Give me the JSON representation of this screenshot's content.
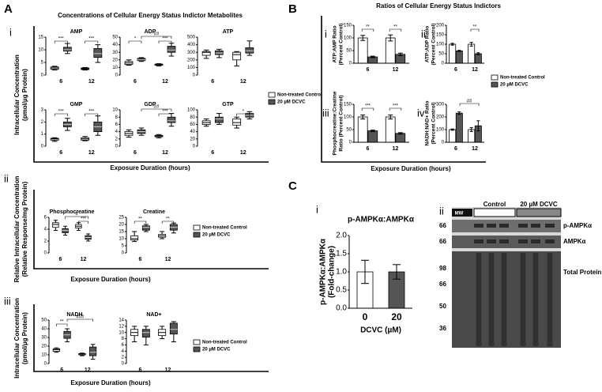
{
  "figure": {
    "A": {
      "label": "A",
      "title": "Concentrations of Cellular Energy Status Indictor Metabolites",
      "groups": [
        {
          "label": "i",
          "ylabel": [
            "Intracellular Concentration",
            "(pmol/µg Protein)"
          ],
          "xlabel": "Exposure Duration (hours)"
        },
        {
          "label": "ii",
          "ylabel": [
            "Relative Intracellular Concentration",
            "(Relative Response/mg Protein)"
          ],
          "xlabel": "Exposure Duration (hours)"
        },
        {
          "label": "iii",
          "ylabel": [
            "Intracellular Concentration",
            "(pmol/µg Protein)"
          ],
          "xlabel": "Exposure Duration (hours)"
        }
      ]
    },
    "B": {
      "label": "B",
      "title": "Ratios of Cellular Energy Status Indictors",
      "sublabels": [
        "i",
        "ii",
        "iii",
        "iv"
      ],
      "xlabel": "Exposure Duration (hours)"
    },
    "C": {
      "label": "C",
      "sublabels": [
        "i",
        "ii"
      ],
      "blot": {
        "header": [
          "MW",
          "Control",
          "20 µM DCVC"
        ],
        "bands": [
          "p-AMPKα",
          "AMPKα",
          "Total Protein"
        ],
        "mw": [
          "66",
          "66",
          "98",
          "66",
          "50",
          "36"
        ]
      }
    }
  },
  "chart_data": [
    {
      "type": "box",
      "title": "AMP",
      "categories": [
        "6",
        "12"
      ],
      "ylim": [
        0,
        15
      ],
      "yticks": [
        0,
        5,
        10,
        15
      ],
      "annotations": [
        "***",
        "***"
      ],
      "series": [
        {
          "color": "#ffffff",
          "values": [
            [
              2,
              2.3,
              2.8,
              3.2,
              3.5
            ],
            [
              2,
              2.2,
              2.5,
              2.8,
              3
            ]
          ]
        },
        {
          "color": "#555555",
          "values": [
            [
              8.5,
              9.5,
              10,
              11,
              12.5
            ],
            [
              5,
              7,
              8.5,
              10.5,
              12
            ]
          ]
        }
      ]
    },
    {
      "type": "box",
      "title": "ADP",
      "categories": [
        "6",
        "12"
      ],
      "ylim": [
        0,
        50
      ],
      "yticks": [
        0,
        10,
        20,
        30,
        40,
        50
      ],
      "annotations": [
        "*",
        "***",
        "##"
      ],
      "series": [
        {
          "color": "#ffffff",
          "values": [
            [
              13,
              14,
              16,
              18,
              20
            ],
            [
              12,
              13,
              14,
              14.5,
              15
            ]
          ]
        },
        {
          "color": "#555555",
          "values": [
            [
              18,
              19,
              20,
              22,
              23
            ],
            [
              25,
              30,
              33,
              38,
              42
            ]
          ]
        }
      ]
    },
    {
      "type": "box",
      "title": "ATP",
      "categories": [
        "6",
        "12"
      ],
      "ylim": [
        0,
        500
      ],
      "yticks": [
        0,
        100,
        200,
        300,
        400,
        500
      ],
      "legend": "right",
      "series": [
        {
          "name": "Non-treated Control",
          "color": "#ffffff",
          "values": [
            [
              220,
              260,
              300,
              310,
              330
            ],
            [
              120,
              200,
              270,
              300,
              310
            ]
          ]
        },
        {
          "name": "20 µM DCVC",
          "color": "#555555",
          "values": [
            [
              230,
              270,
              290,
              320,
              340
            ],
            [
              260,
              290,
              320,
              360,
              450
            ]
          ]
        }
      ]
    },
    {
      "type": "box",
      "title": "GMP",
      "categories": [
        "6",
        "12"
      ],
      "ylim": [
        0,
        3
      ],
      "yticks": [
        0,
        1,
        2,
        3
      ],
      "annotations": [
        "***",
        "***"
      ],
      "series": [
        {
          "color": "#ffffff",
          "values": [
            [
              0.4,
              0.5,
              0.6,
              0.65,
              0.7
            ],
            [
              0.45,
              0.5,
              0.6,
              0.7,
              0.8
            ]
          ]
        },
        {
          "color": "#555555",
          "values": [
            [
              1.3,
              1.6,
              1.8,
              2,
              2.3
            ],
            [
              0.9,
              1.2,
              1.6,
              2,
              2.5
            ]
          ]
        }
      ]
    },
    {
      "type": "box",
      "title": "GDP",
      "categories": [
        "6",
        "12"
      ],
      "ylim": [
        0,
        10
      ],
      "yticks": [
        0,
        2,
        4,
        6,
        8,
        10
      ],
      "annotations": [
        "***",
        "##"
      ],
      "series": [
        {
          "color": "#ffffff",
          "values": [
            [
              2.5,
              3,
              3.5,
              4,
              4.5
            ],
            [
              2.3,
              2.6,
              2.8,
              3,
              3.2
            ]
          ]
        },
        {
          "color": "#555555",
          "values": [
            [
              3,
              3.5,
              4,
              4.5,
              5
            ],
            [
              5.5,
              6.5,
              7,
              8,
              9
            ]
          ]
        }
      ]
    },
    {
      "type": "box",
      "title": "GTP",
      "categories": [
        "6",
        "12"
      ],
      "ylim": [
        0,
        100
      ],
      "yticks": [
        0,
        20,
        40,
        60,
        80,
        100
      ],
      "annotations": [
        "*"
      ],
      "series": [
        {
          "color": "#ffffff",
          "values": [
            [
              55,
              60,
              65,
              70,
              75
            ],
            [
              50,
              58,
              65,
              75,
              80
            ]
          ]
        },
        {
          "color": "#555555",
          "values": [
            [
              60,
              65,
              75,
              80,
              90
            ],
            [
              75,
              80,
              85,
              90,
              95
            ]
          ]
        }
      ]
    },
    {
      "type": "box",
      "title": "Phosphocreatine",
      "categories": [
        "6",
        "12"
      ],
      "ylim": [
        0,
        6
      ],
      "yticks": [
        0,
        2,
        4,
        6
      ],
      "annotations": [
        "#",
        "***"
      ],
      "series": [
        {
          "color": "#ffffff",
          "values": [
            [
              3.8,
              4.3,
              4.8,
              5.1,
              5.5
            ],
            [
              3.8,
              4.2,
              4.5,
              4.8,
              5.1
            ]
          ]
        },
        {
          "color": "#555555",
          "values": [
            [
              3,
              3.4,
              3.8,
              4.1,
              4.5
            ],
            [
              2,
              2.3,
              2.6,
              2.9,
              3.2
            ]
          ]
        }
      ]
    },
    {
      "type": "box",
      "title": "Creatine",
      "categories": [
        "6",
        "12"
      ],
      "ylim": [
        0,
        25
      ],
      "yticks": [
        0,
        5,
        10,
        15,
        20,
        25
      ],
      "annotations": [
        "**",
        "**"
      ],
      "legend": "right",
      "series": [
        {
          "name": "Non-treated Control",
          "color": "#ffffff",
          "values": [
            [
              8,
              9,
              10,
              12,
              15
            ],
            [
              10,
              11,
              12,
              13,
              15
            ]
          ]
        },
        {
          "name": "20 µM DCVC",
          "color": "#555555",
          "values": [
            [
              15,
              16,
              18,
              19,
              20
            ],
            [
              14,
              16,
              18,
              20,
              21
            ]
          ]
        }
      ]
    },
    {
      "type": "box",
      "title": "NADH",
      "categories": [
        "6",
        "12"
      ],
      "ylim": [
        0,
        50
      ],
      "yticks": [
        0,
        10,
        20,
        30,
        40,
        50
      ],
      "annotations": [
        "**",
        "###"
      ],
      "series": [
        {
          "color": "#ffffff",
          "values": [
            [
              13,
              14,
              16,
              17,
              18
            ],
            [
              9,
              10,
              11,
              11.5,
              12
            ]
          ]
        },
        {
          "color": "#555555",
          "values": [
            [
              25,
              29,
              33,
              37,
              40
            ],
            [
              5,
              9,
              13,
              19,
              22
            ]
          ]
        }
      ]
    },
    {
      "type": "box",
      "title": "NAD+",
      "categories": [
        "6",
        "12"
      ],
      "ylim": [
        0,
        14
      ],
      "yticks": [
        0,
        2,
        4,
        6,
        8,
        10,
        12,
        14
      ],
      "legend": "right",
      "series": [
        {
          "name": "Non-treated Control",
          "color": "#ffffff",
          "values": [
            [
              7,
              9,
              10,
              11,
              12
            ],
            [
              8,
              9,
              10,
              11,
              12
            ]
          ]
        },
        {
          "name": "20 µM DCVC",
          "color": "#555555",
          "values": [
            [
              6,
              8.5,
              10,
              11,
              12
            ],
            [
              7,
              9.5,
              11,
              13,
              13.5
            ]
          ]
        }
      ]
    },
    {
      "type": "bar",
      "ylabel": [
        "ATP:AMP Ratio",
        "(Percent Control)"
      ],
      "categories": [
        "6",
        "12"
      ],
      "ylim": [
        0,
        150
      ],
      "yticks": [
        0,
        50,
        100,
        150
      ],
      "annotations": [
        "**",
        "**"
      ],
      "series": [
        {
          "color": "#ffffff",
          "values": [
            100,
            100
          ],
          "errors": [
            10,
            12
          ]
        },
        {
          "color": "#555555",
          "values": [
            25,
            35
          ],
          "errors": [
            3,
            5
          ]
        }
      ]
    },
    {
      "type": "bar",
      "ylabel": [
        "ATP:ADP Ratio",
        "(Percent Control)"
      ],
      "categories": [
        "6",
        "12"
      ],
      "ylim": [
        0,
        200
      ],
      "yticks": [
        0,
        50,
        100,
        150,
        200
      ],
      "annotations": [
        "**"
      ],
      "series": [
        {
          "color": "#ffffff",
          "values": [
            100,
            100
          ],
          "errors": [
            5,
            10
          ]
        },
        {
          "color": "#555555",
          "values": [
            65,
            50
          ],
          "errors": [
            3,
            5
          ]
        }
      ]
    },
    {
      "type": "bar",
      "ylabel": [
        "Phosphocreatine:Creatine",
        "Ratio (Percent Control)"
      ],
      "categories": [
        "6",
        "12"
      ],
      "ylim": [
        0,
        150
      ],
      "yticks": [
        0,
        50,
        100,
        150
      ],
      "annotations": [
        "***",
        "***"
      ],
      "series": [
        {
          "color": "#ffffff",
          "values": [
            100,
            100
          ],
          "errors": [
            8,
            8
          ]
        },
        {
          "color": "#555555",
          "values": [
            45,
            35
          ],
          "errors": [
            3,
            3
          ]
        }
      ]
    },
    {
      "type": "bar",
      "ylabel": [
        "NADH:NAD+ Ratio",
        "(Percent Control)"
      ],
      "categories": [
        "6",
        "12"
      ],
      "ylim": [
        0,
        300
      ],
      "yticks": [
        0,
        100,
        200,
        300
      ],
      "annotations": [
        "##"
      ],
      "legend": "right",
      "series": [
        {
          "name": "Non-treated Control",
          "color": "#ffffff",
          "values": [
            100,
            100
          ],
          "errors": [
            5,
            15
          ]
        },
        {
          "name": "20 µM DCVC",
          "color": "#555555",
          "values": [
            230,
            130
          ],
          "errors": [
            10,
            40
          ]
        }
      ]
    },
    {
      "type": "bar",
      "title": "p-AMPKα:AMPKα",
      "ylabel": [
        "p-AMPKα:AMPKα",
        "(Fold-change)"
      ],
      "xlabel": "DCVC (µM)",
      "categories": [
        "0",
        "20"
      ],
      "ylim": [
        0,
        2
      ],
      "yticks": [
        {
          "value": 0,
          "label": "0.0"
        },
        {
          "value": 0.5,
          "label": "0.5"
        },
        {
          "value": 1,
          "label": "1.0"
        },
        {
          "value": 1.5,
          "label": "1.5"
        },
        {
          "value": 2,
          "label": "2.0"
        }
      ],
      "series": [
        {
          "colors": [
            "#ffffff",
            "#555555"
          ],
          "values": [
            1,
            1
          ],
          "errors": [
            0.32,
            0.2
          ]
        }
      ]
    }
  ]
}
